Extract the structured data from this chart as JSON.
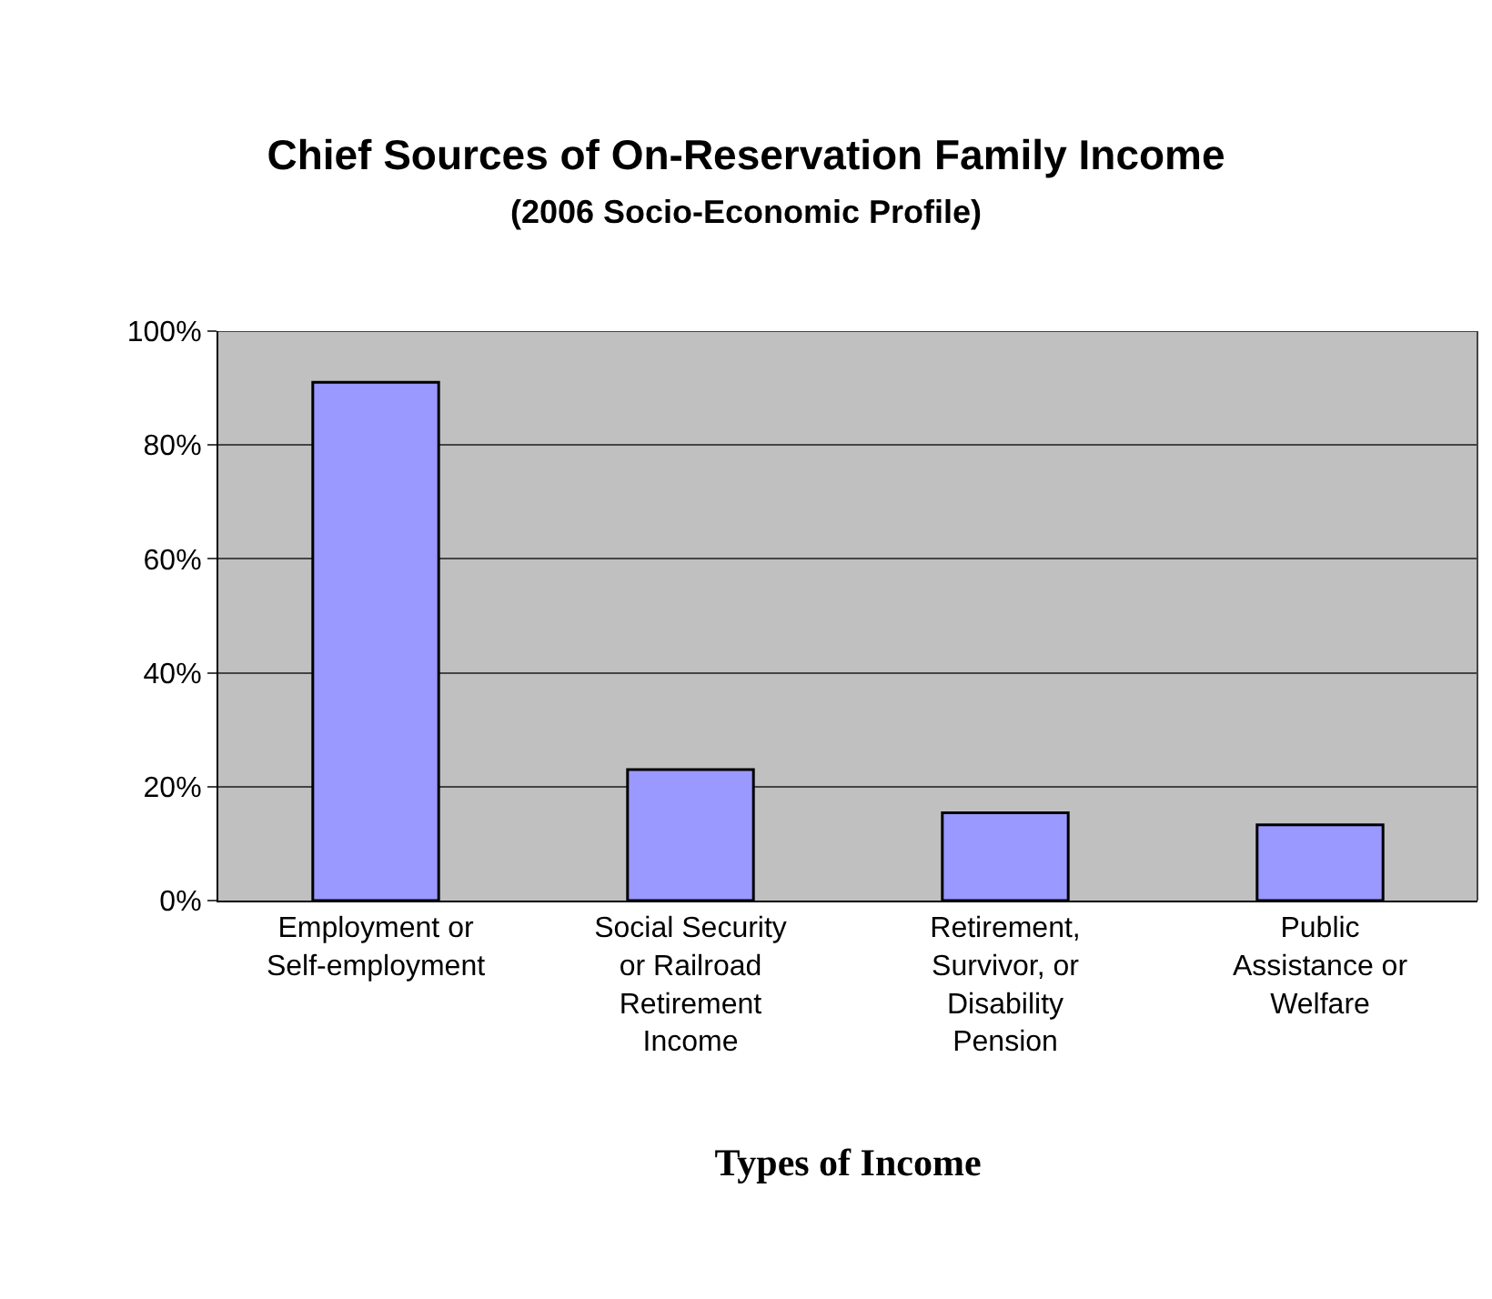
{
  "chart_data": {
    "type": "bar",
    "title": "Chief Sources of On-Reservation Family Income",
    "subtitle": "(2006 Socio-Economic Profile)",
    "xlabel": "Types of Income",
    "categories": [
      "Employment or Self-employment",
      "Social Security or Railroad Retirement Income",
      "Retirement, Survivor, or Disability Pension",
      "Public Assistance or Welfare"
    ],
    "values": [
      91,
      23,
      15.4,
      13.3
    ],
    "color": "#9999ff",
    "ylim": [
      0,
      100
    ],
    "yticks": [
      {
        "value": 0,
        "label": "0%"
      },
      {
        "value": 20,
        "label": "20%"
      },
      {
        "value": 40,
        "label": "40%"
      },
      {
        "value": 60,
        "label": "60%"
      },
      {
        "value": 80,
        "label": "80%"
      },
      {
        "value": 100,
        "label": "100%"
      }
    ],
    "grid": "y"
  }
}
